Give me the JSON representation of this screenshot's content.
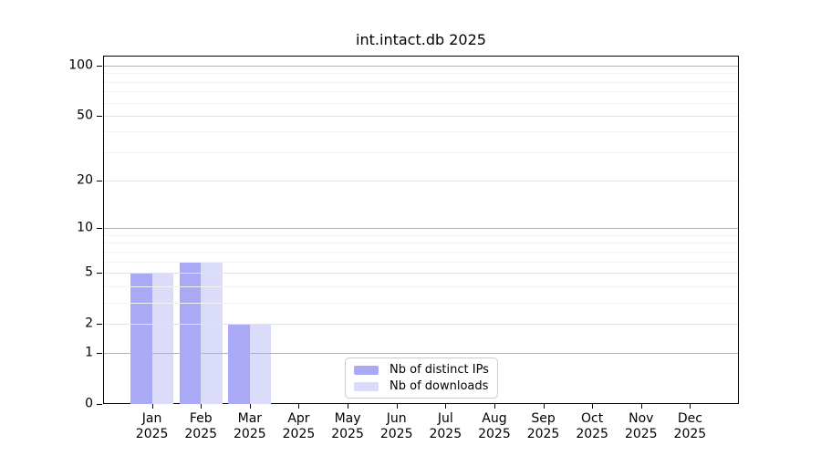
{
  "chart_data": {
    "type": "bar",
    "title": "int.intact.db 2025",
    "categories": [
      "Jan",
      "Feb",
      "Mar",
      "Apr",
      "May",
      "Jun",
      "Jul",
      "Aug",
      "Sep",
      "Oct",
      "Nov",
      "Dec"
    ],
    "x_year_label": "2025",
    "series": [
      {
        "name": "Nb of distinct IPs",
        "color": "#a9a9f6",
        "values": [
          5,
          6,
          2,
          0,
          0,
          0,
          0,
          0,
          0,
          0,
          0,
          0
        ]
      },
      {
        "name": "Nb of downloads",
        "color": "#dbdbfa",
        "values": [
          5,
          6,
          2,
          0,
          0,
          0,
          0,
          0,
          0,
          0,
          0,
          0
        ]
      }
    ],
    "xlabel": "",
    "ylabel": "",
    "y_scale": "log1p",
    "ylim": [
      0,
      115
    ],
    "y_major_ticks": [
      100,
      50,
      20,
      10,
      5,
      2,
      1,
      0
    ],
    "y_power_gridlines": [
      100,
      10,
      1
    ],
    "y_mid_gridlines": [
      50,
      20,
      5,
      2
    ],
    "y_minor_gridlines": [
      90,
      80,
      70,
      60,
      40,
      30,
      9,
      8,
      7,
      6,
      4,
      3
    ],
    "grid": true,
    "legend_position": "lower-center-inside",
    "colors": {
      "axis": "#000000",
      "text": "#000000",
      "background": "#ffffff",
      "grid_power": "#b3b3b3",
      "grid_mid": "#e2e2e2",
      "grid_minor": "#f2f2f2",
      "legend_border": "#cccccc"
    }
  }
}
